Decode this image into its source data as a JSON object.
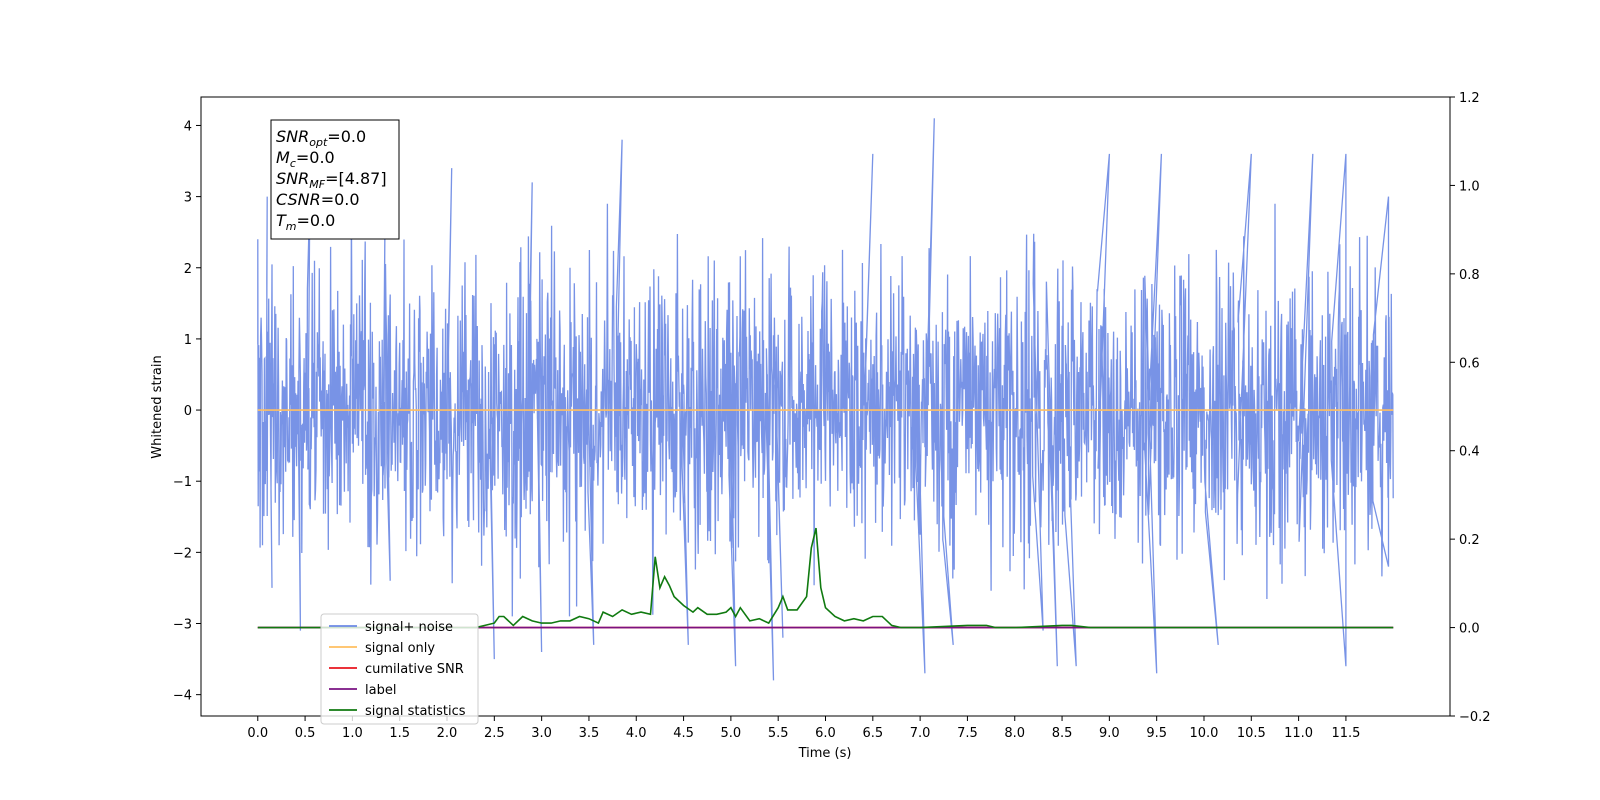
{
  "chart_data": {
    "type": "line",
    "title": "",
    "xlabel": "Time (s)",
    "ylabel": "Whitened strain",
    "xlim": [
      -0.6,
      12.6
    ],
    "ylim": [
      -4.3,
      4.4
    ],
    "ylim_right": [
      -0.2,
      1.2
    ],
    "x_ticks": [
      0.0,
      0.5,
      1.0,
      1.5,
      2.0,
      2.5,
      3.0,
      3.5,
      4.0,
      4.5,
      5.0,
      5.5,
      6.0,
      6.5,
      7.0,
      7.5,
      8.0,
      8.5,
      9.0,
      9.5,
      10.0,
      10.5,
      11.0,
      11.5
    ],
    "x_tick_labels": [
      "0.0",
      "0.5",
      "1.0",
      "1.5",
      "2.0",
      "2.5",
      "3.0",
      "3.5",
      "4.0",
      "4.5",
      "5.0",
      "5.5",
      "6.0",
      "6.5",
      "7.0",
      "7.5",
      "8.0",
      "8.5",
      "9.0",
      "9.5",
      "10.0",
      "10.5",
      "11.0",
      "11.5"
    ],
    "y_ticks": [
      4,
      3,
      2,
      1,
      0,
      -1,
      -2,
      -3,
      -4
    ],
    "y_tick_labels": [
      "4",
      "3",
      "2",
      "1",
      "0",
      "−1",
      "−2",
      "−3",
      "−4"
    ],
    "y_right_ticks": [
      1.2,
      1.0,
      0.8,
      0.6,
      0.4,
      0.2,
      0.0,
      -0.2
    ],
    "y_right_tick_labels": [
      "1.2",
      "1.0",
      "0.8",
      "0.6",
      "0.4",
      "0.2",
      "0.0",
      "−0.2"
    ],
    "grid": false,
    "legend_position": "lower-left",
    "series": [
      {
        "name": "signal+ noise",
        "color": "#6c8ae4",
        "axis": "left",
        "description_values": "whitened noise, approx. N(0,1), 0.0–12.0 s",
        "peaks": [
          {
            "x": 0.0,
            "y": 2.4
          },
          {
            "x": 0.05,
            "y": -1.9
          },
          {
            "x": 0.1,
            "y": 3.0
          },
          {
            "x": 0.15,
            "y": -2.5
          },
          {
            "x": 0.45,
            "y": -3.1
          },
          {
            "x": 0.55,
            "y": 3.0
          },
          {
            "x": 1.35,
            "y": 3.6
          },
          {
            "x": 1.4,
            "y": -2.4
          },
          {
            "x": 2.05,
            "y": 3.4
          },
          {
            "x": 2.5,
            "y": -3.5
          },
          {
            "x": 2.9,
            "y": 3.2
          },
          {
            "x": 3.0,
            "y": -3.4
          },
          {
            "x": 3.55,
            "y": -3.3
          },
          {
            "x": 3.85,
            "y": 3.8
          },
          {
            "x": 4.55,
            "y": -3.3
          },
          {
            "x": 5.05,
            "y": -3.6
          },
          {
            "x": 5.45,
            "y": -3.8
          },
          {
            "x": 5.55,
            "y": -3.2
          },
          {
            "x": 6.5,
            "y": 3.6
          },
          {
            "x": 7.05,
            "y": -3.7
          },
          {
            "x": 7.15,
            "y": 4.1
          },
          {
            "x": 7.35,
            "y": -3.3
          },
          {
            "x": 8.3,
            "y": -3.1
          },
          {
            "x": 8.45,
            "y": -3.6
          },
          {
            "x": 8.65,
            "y": -3.6
          },
          {
            "x": 9.0,
            "y": 3.6
          },
          {
            "x": 9.5,
            "y": -3.7
          },
          {
            "x": 9.55,
            "y": 3.6
          },
          {
            "x": 10.15,
            "y": -3.3
          },
          {
            "x": 10.5,
            "y": 3.6
          },
          {
            "x": 11.15,
            "y": 3.6
          },
          {
            "x": 11.5,
            "y": 3.6
          },
          {
            "x": 11.5,
            "y": -3.6
          },
          {
            "x": 11.95,
            "y": 3.0
          },
          {
            "x": 11.95,
            "y": -2.2
          }
        ]
      },
      {
        "name": "signal only",
        "color": "#ffbf60",
        "axis": "left",
        "x": [
          0.0,
          12.0
        ],
        "y": [
          0.0,
          0.0
        ]
      },
      {
        "name": "cumilative SNR",
        "color": "#e8141e",
        "axis": "right",
        "x": [
          0.0,
          12.0
        ],
        "y": [
          0.0,
          0.0
        ]
      },
      {
        "name": "label",
        "color": "#7a1282",
        "axis": "right",
        "x": [
          0.0,
          12.0
        ],
        "y": [
          0.0,
          0.0
        ]
      },
      {
        "name": "signal statistics",
        "color": "#107a10",
        "axis": "right",
        "x": [
          0.0,
          2.0,
          2.1,
          2.2,
          2.3,
          2.4,
          2.5,
          2.55,
          2.6,
          2.7,
          2.8,
          2.9,
          3.0,
          3.1,
          3.2,
          3.3,
          3.4,
          3.5,
          3.6,
          3.65,
          3.75,
          3.85,
          3.95,
          4.05,
          4.15,
          4.2,
          4.25,
          4.3,
          4.35,
          4.4,
          4.5,
          4.6,
          4.65,
          4.75,
          4.85,
          4.95,
          5.0,
          5.05,
          5.1,
          5.2,
          5.3,
          5.4,
          5.5,
          5.55,
          5.6,
          5.7,
          5.8,
          5.85,
          5.9,
          5.95,
          6.0,
          6.1,
          6.2,
          6.3,
          6.4,
          6.5,
          6.6,
          6.7,
          6.8,
          7.0,
          7.5,
          7.7,
          7.8,
          8.0,
          8.5,
          8.6,
          8.8,
          9.0,
          12.0
        ],
        "y": [
          0.0,
          0.0,
          0.0,
          0.0,
          0.0,
          0.005,
          0.01,
          0.025,
          0.025,
          0.005,
          0.025,
          0.015,
          0.01,
          0.01,
          0.015,
          0.015,
          0.025,
          0.02,
          0.01,
          0.035,
          0.025,
          0.04,
          0.03,
          0.035,
          0.03,
          0.16,
          0.09,
          0.115,
          0.095,
          0.07,
          0.05,
          0.035,
          0.045,
          0.03,
          0.03,
          0.035,
          0.045,
          0.025,
          0.045,
          0.015,
          0.02,
          0.01,
          0.045,
          0.07,
          0.04,
          0.04,
          0.07,
          0.18,
          0.225,
          0.09,
          0.045,
          0.025,
          0.015,
          0.02,
          0.015,
          0.025,
          0.025,
          0.005,
          0.0,
          0.0,
          0.005,
          0.005,
          0.0,
          0.0,
          0.005,
          0.005,
          0.0,
          0.0,
          0.0
        ]
      }
    ],
    "annotation": {
      "lines": [
        {
          "base": "SNR",
          "sub": "opt",
          "value": "=0.0"
        },
        {
          "base": "M",
          "sub": "c",
          "value": "=0.0"
        },
        {
          "base": "SNR",
          "sub": "MF",
          "value": "=[4.87]"
        },
        {
          "base": "CSNR",
          "sub": "",
          "value": "=0.0"
        },
        {
          "base": "T",
          "sub": "m",
          "value": "=0.0"
        }
      ]
    }
  }
}
